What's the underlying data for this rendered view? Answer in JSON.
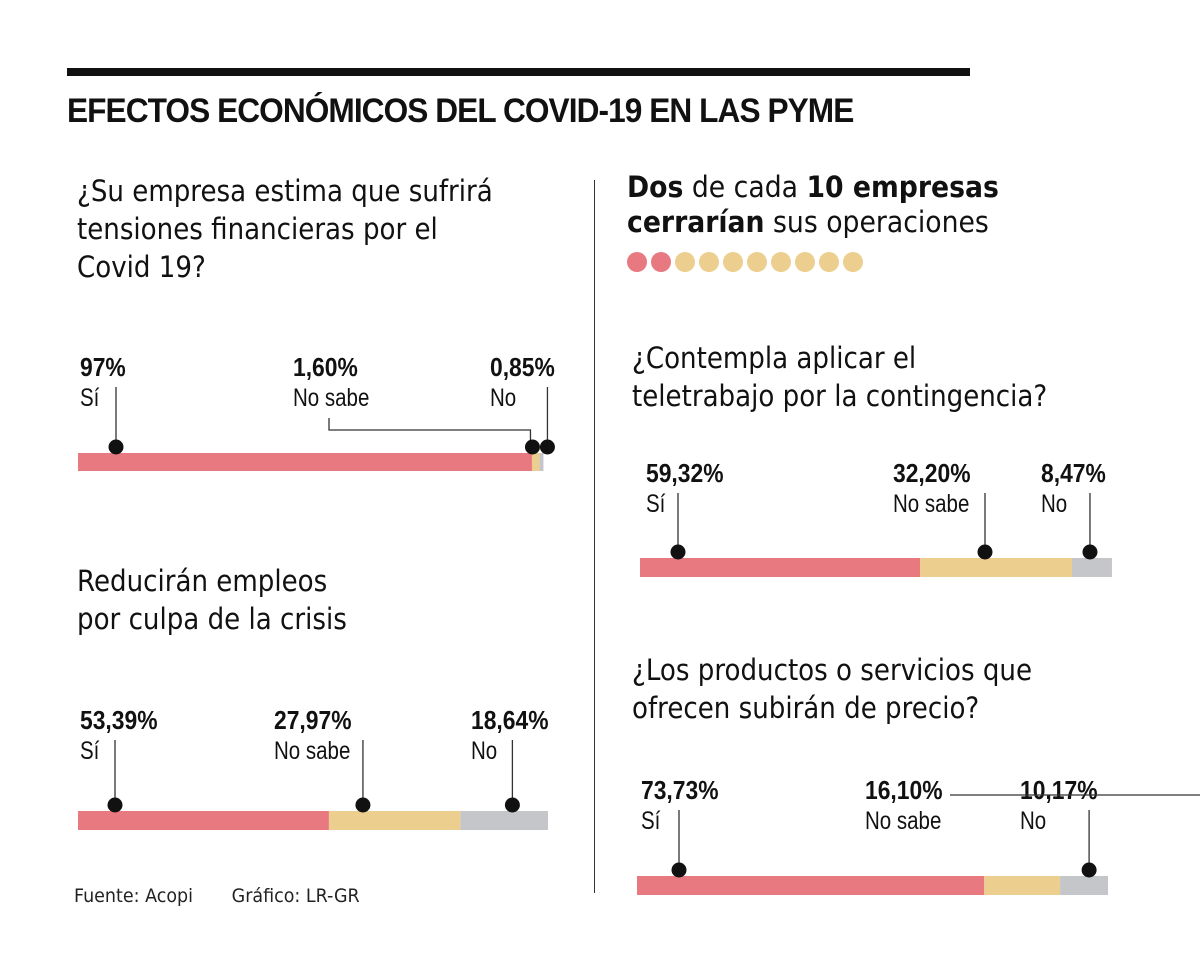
{
  "title": "EFECTOS ECONÓMICOS DEL COVID-19 EN LAS PYME",
  "colors": {
    "si": "#e87981",
    "no_sabe": "#ecce8e",
    "no": "#c5c6ca",
    "marker": "#111111"
  },
  "callout": {
    "parts": [
      {
        "text": "Dos",
        "bold": true
      },
      {
        "text": " de cada ",
        "bold": false
      },
      {
        "text": "10 empresas",
        "bold": true
      },
      {
        "text": " ",
        "bold": false
      },
      {
        "text": "cerrarían",
        "bold": true
      },
      {
        "text": " sus operaciones",
        "bold": false
      }
    ],
    "line1": [
      "Dos",
      " de cada ",
      "10 empresas"
    ],
    "line2": [
      "cerrarían",
      " sus operaciones"
    ],
    "highlighted": 2,
    "total": 10
  },
  "chart_data": [
    {
      "type": "bar",
      "stacked": true,
      "orientation": "horizontal",
      "title": "¿Su empresa estima que sufrirá tensiones financieras por el Covid 19?",
      "categories": [
        "Sí",
        "No sabe",
        "No"
      ],
      "values": [
        97,
        1.6,
        0.85
      ],
      "labels": [
        "97%",
        "1,60%",
        "0,85%"
      ],
      "xlim": [
        0,
        100
      ]
    },
    {
      "type": "bar",
      "stacked": true,
      "orientation": "horizontal",
      "title": "Reducirán empleos por culpa de la crisis",
      "categories": [
        "Sí",
        "No sabe",
        "No"
      ],
      "values": [
        53.39,
        27.97,
        18.64
      ],
      "labels": [
        "53,39%",
        "27,97%",
        "18,64%"
      ],
      "xlim": [
        0,
        100
      ]
    },
    {
      "type": "bar",
      "stacked": true,
      "orientation": "horizontal",
      "title": "¿Contempla aplicar el teletrabajo por la contingencia?",
      "categories": [
        "Sí",
        "No sabe",
        "No"
      ],
      "values": [
        59.32,
        32.2,
        8.47
      ],
      "labels": [
        "59,32%",
        "32,20%",
        "8,47%"
      ],
      "xlim": [
        0,
        100
      ]
    },
    {
      "type": "bar",
      "stacked": true,
      "orientation": "horizontal",
      "title": "¿Los productos o servicios que ofrecen subirán de precio?",
      "categories": [
        "Sí",
        "No sabe",
        "No"
      ],
      "values": [
        73.73,
        16.1,
        10.17
      ],
      "labels": [
        "73,73%",
        "16,10%",
        "10,17%"
      ],
      "xlim": [
        0,
        100
      ]
    }
  ],
  "questions": {
    "q1_line1": "¿Su empresa estima que sufrirá",
    "q1_line2": "tensiones financieras por el",
    "q1_line3": "Covid 19?",
    "q2_line1": "Reducirán empleos",
    "q2_line2": "por culpa de la crisis",
    "q3_line1": "¿Contempla aplicar el",
    "q3_line2": "teletrabajo por la contingencia?",
    "q4_line1": "¿Los productos o servicios que",
    "q4_line2": "ofrecen subirán de precio?"
  },
  "footer": {
    "source": "Fuente: Acopi",
    "credit": "Gráfico: LR-GR"
  }
}
